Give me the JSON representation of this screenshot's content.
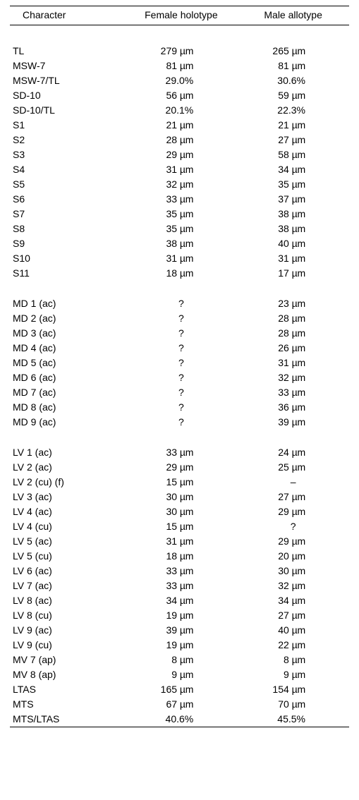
{
  "table": {
    "header": {
      "col1": "Character",
      "col2": "Female holotype",
      "col3": "Male allotype"
    },
    "unit_label": "µm",
    "font_size": 14,
    "colors": {
      "background": "#ffffff",
      "text": "#000000",
      "rule": "#000000"
    },
    "groups": [
      {
        "rows": [
          {
            "c": "TL",
            "f": "279",
            "m": "265",
            "unit": true
          },
          {
            "c": "MSW-7",
            "f": "81",
            "m": "81",
            "unit": true
          },
          {
            "c": "MSW-7/TL",
            "f": "29.0%",
            "m": "30.6%",
            "unit": false
          },
          {
            "c": "SD-10",
            "f": "56",
            "m": "59",
            "unit": true
          },
          {
            "c": "SD-10/TL",
            "f": "20.1%",
            "m": "22.3%",
            "unit": false
          },
          {
            "c": "S1",
            "f": "21",
            "m": "21",
            "unit": true
          },
          {
            "c": "S2",
            "f": "28",
            "m": "27",
            "unit": true
          },
          {
            "c": "S3",
            "f": "29",
            "m": "58",
            "unit": true
          },
          {
            "c": "S4",
            "f": "31",
            "m": "34",
            "unit": true
          },
          {
            "c": "S5",
            "f": "32",
            "m": "35",
            "unit": true
          },
          {
            "c": "S6",
            "f": "33",
            "m": "37",
            "unit": true
          },
          {
            "c": "S7",
            "f": "35",
            "m": "38",
            "unit": true
          },
          {
            "c": "S8",
            "f": "35",
            "m": "38",
            "unit": true
          },
          {
            "c": "S9",
            "f": "38",
            "m": "40",
            "unit": true
          },
          {
            "c": "S10",
            "f": "31",
            "m": "31",
            "unit": true
          },
          {
            "c": "S11",
            "f": "18",
            "m": "17",
            "unit": true
          }
        ]
      },
      {
        "rows": [
          {
            "c": "MD 1 (ac)",
            "f": "?",
            "m": "23",
            "unit_f": false,
            "unit_m": true,
            "center_f": true
          },
          {
            "c": "MD 2 (ac)",
            "f": "?",
            "m": "28",
            "unit_f": false,
            "unit_m": true,
            "center_f": true
          },
          {
            "c": "MD 3 (ac)",
            "f": "?",
            "m": "28",
            "unit_f": false,
            "unit_m": true,
            "center_f": true
          },
          {
            "c": "MD 4 (ac)",
            "f": "?",
            "m": "26",
            "unit_f": false,
            "unit_m": true,
            "center_f": true
          },
          {
            "c": "MD 5 (ac)",
            "f": "?",
            "m": "31",
            "unit_f": false,
            "unit_m": true,
            "center_f": true
          },
          {
            "c": "MD 6 (ac)",
            "f": "?",
            "m": "32",
            "unit_f": false,
            "unit_m": true,
            "center_f": true
          },
          {
            "c": "MD 7 (ac)",
            "f": "?",
            "m": "33",
            "unit_f": false,
            "unit_m": true,
            "center_f": true
          },
          {
            "c": "MD 8 (ac)",
            "f": "?",
            "m": "36",
            "unit_f": false,
            "unit_m": true,
            "center_f": true
          },
          {
            "c": "MD 9 (ac)",
            "f": "?",
            "m": "39",
            "unit_f": false,
            "unit_m": true,
            "center_f": true
          }
        ]
      },
      {
        "rows": [
          {
            "c": "LV 1 (ac)",
            "f": "33",
            "m": "24",
            "unit": true
          },
          {
            "c": "LV 2 (ac)",
            "f": "29",
            "m": "25",
            "unit": true
          },
          {
            "c": "LV 2 (cu) (f)",
            "f": "15",
            "m": "–",
            "unit_f": true,
            "unit_m": false,
            "center_m": true
          },
          {
            "c": "LV 3 (ac)",
            "f": "30",
            "m": "27",
            "unit": true
          },
          {
            "c": "LV 4 (ac)",
            "f": "30",
            "m": "29",
            "unit": true
          },
          {
            "c": "LV 4 (cu)",
            "f": "15",
            "m": "?",
            "unit_f": true,
            "unit_m": false,
            "center_m": true
          },
          {
            "c": "LV 5 (ac)",
            "f": "31",
            "m": "29",
            "unit": true
          },
          {
            "c": "LV 5 (cu)",
            "f": "18",
            "m": "20",
            "unit": true
          },
          {
            "c": "LV 6 (ac)",
            "f": "33",
            "m": "30",
            "unit": true
          },
          {
            "c": "LV 7 (ac)",
            "f": "33",
            "m": "32",
            "unit": true
          },
          {
            "c": "LV 8 (ac)",
            "f": "34",
            "m": "34",
            "unit": true
          },
          {
            "c": "LV 8 (cu)",
            "f": "19",
            "m": "27",
            "unit": true
          },
          {
            "c": "LV 9 (ac)",
            "f": "39",
            "m": "40",
            "unit": true
          },
          {
            "c": "LV 9 (cu)",
            "f": "19",
            "m": "22",
            "unit": true
          },
          {
            "c": "MV 7 (ap)",
            "f": "8",
            "m": "8",
            "unit": true
          },
          {
            "c": "MV 8 (ap)",
            "f": "9",
            "m": "9",
            "unit": true
          },
          {
            "c": "LTAS",
            "f": "165",
            "m": "154",
            "unit": true
          },
          {
            "c": "MTS",
            "f": "67",
            "m": "70",
            "unit": true
          },
          {
            "c": "MTS/LTAS",
            "f": "40.6%",
            "m": "45.5%",
            "unit": false
          }
        ]
      }
    ]
  }
}
